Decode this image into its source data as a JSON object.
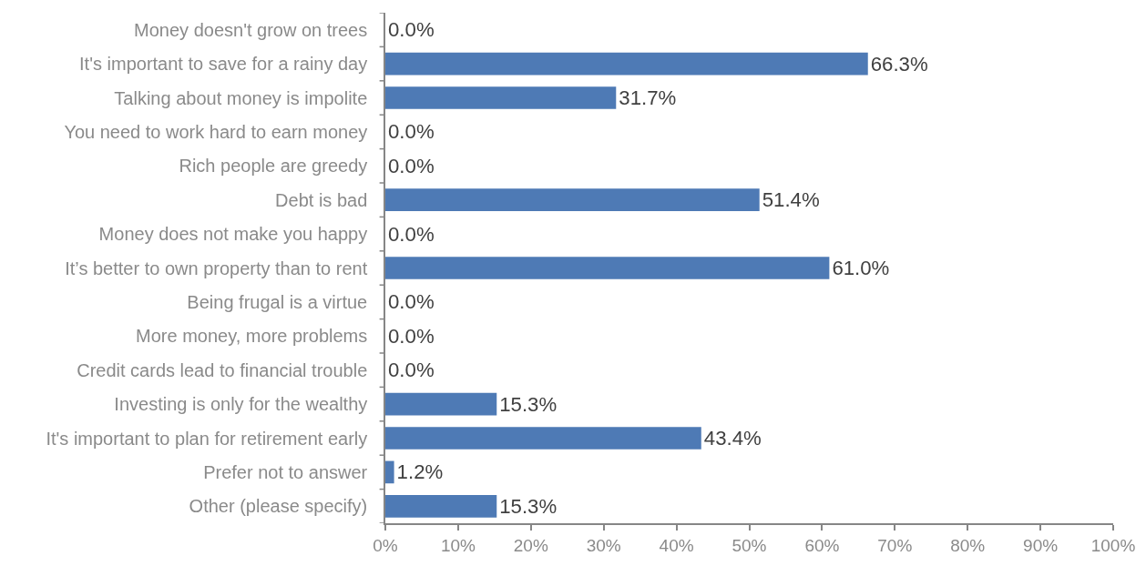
{
  "chart_data": {
    "type": "bar",
    "orientation": "horizontal",
    "categories": [
      "Money doesn't grow on trees",
      "It's important to save for a rainy day",
      "Talking about money is impolite",
      "You need to work hard to earn money",
      "Rich people are greedy",
      "Debt is bad",
      "Money does not make you happy",
      "It’s better to own property than to rent",
      "Being frugal is a virtue",
      "More money, more problems",
      "Credit cards lead to financial trouble",
      "Investing is only for the wealthy",
      "It's important to plan for retirement early",
      "Prefer not to answer",
      "Other (please specify)"
    ],
    "values": [
      0,
      66.3,
      31.7,
      0,
      0,
      51.4,
      0,
      61.0,
      0,
      0,
      0,
      15.3,
      43.4,
      1.2,
      15.3
    ],
    "value_labels": [
      "0.0%",
      "66.3%",
      "31.7%",
      "0.0%",
      "0.0%",
      "51.4%",
      "0.0%",
      "61.0%",
      "0.0%",
      "0.0%",
      "0.0%",
      "15.3%",
      "43.4%",
      "1.2%",
      "15.3%"
    ],
    "color": "#4e7ab5",
    "xlim": [
      0,
      100
    ],
    "xticks": [
      {
        "value": 0,
        "label": "0%"
      },
      {
        "value": 10,
        "label": "10%"
      },
      {
        "value": 20,
        "label": "20%"
      },
      {
        "value": 30,
        "label": "30%"
      },
      {
        "value": 40,
        "label": "40%"
      },
      {
        "value": 50,
        "label": "50%"
      },
      {
        "value": 60,
        "label": "60%"
      },
      {
        "value": 70,
        "label": "70%"
      },
      {
        "value": 80,
        "label": "80%"
      },
      {
        "value": 90,
        "label": "90%"
      },
      {
        "value": 100,
        "label": "100%"
      }
    ]
  }
}
